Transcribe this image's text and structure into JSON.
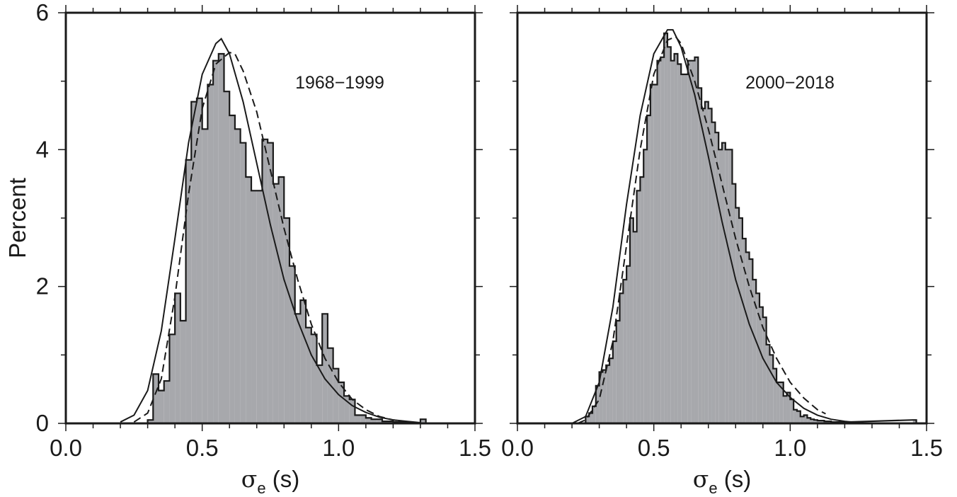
{
  "colors": {
    "hist_fill": "#a7a8ac",
    "line": "#1a1a1a",
    "frame": "#1a1a1a",
    "background": "#ffffff"
  },
  "chart_data": [
    {
      "type": "histogram",
      "title": "",
      "annotation": "1968−1999",
      "xlabel_symbol": "σ",
      "xlabel_sub": "e",
      "xlabel_unit": " (s)",
      "ylabel": "Percent",
      "xlim": [
        0.0,
        1.5
      ],
      "ylim": [
        0,
        6
      ],
      "xticks": [
        0.0,
        0.5,
        1.0,
        1.5
      ],
      "xtick_labels": [
        "0.0",
        "0.5",
        "1.0",
        "1.5"
      ],
      "yticks": [
        0,
        2,
        4,
        6
      ],
      "ytick_labels": [
        "0",
        "2",
        "4",
        "6"
      ],
      "grid": false,
      "hist": {
        "bin_width": 0.02,
        "bins_start": [
          0.3,
          0.32,
          0.34,
          0.36,
          0.38,
          0.4,
          0.42,
          0.44,
          0.46,
          0.48,
          0.5,
          0.52,
          0.54,
          0.56,
          0.58,
          0.6,
          0.62,
          0.64,
          0.66,
          0.68,
          0.7,
          0.72,
          0.74,
          0.76,
          0.78,
          0.8,
          0.82,
          0.84,
          0.86,
          0.88,
          0.9,
          0.92,
          0.94,
          0.96,
          0.98,
          1.0,
          1.02,
          1.04,
          1.06,
          1.08,
          1.1,
          1.12,
          1.14,
          1.16,
          1.18,
          1.2,
          1.22,
          1.24,
          1.26,
          1.28,
          1.3
        ],
        "percent": [
          0.05,
          0.72,
          0.48,
          0.62,
          1.3,
          1.9,
          1.5,
          3.85,
          4.7,
          4.75,
          4.3,
          4.95,
          5.3,
          5.4,
          4.85,
          4.5,
          4.3,
          4.1,
          3.6,
          3.4,
          3.4,
          4.15,
          4.1,
          3.5,
          3.6,
          3.0,
          2.3,
          1.6,
          1.8,
          1.4,
          1.3,
          0.85,
          1.6,
          1.1,
          0.8,
          0.6,
          0.4,
          0.35,
          0.12,
          0.12,
          0.08,
          0.06,
          0.06,
          0.03,
          0.03,
          0.02,
          0.02,
          0.01,
          0.0,
          0.0,
          0.06
        ]
      },
      "curves": [
        {
          "style": "solid",
          "x": [
            0.2,
            0.25,
            0.3,
            0.35,
            0.4,
            0.45,
            0.5,
            0.55,
            0.57,
            0.6,
            0.65,
            0.7,
            0.75,
            0.8,
            0.85,
            0.9,
            0.95,
            1.0,
            1.05,
            1.1,
            1.15,
            1.2,
            1.25,
            1.3
          ],
          "y": [
            0.02,
            0.12,
            0.48,
            1.35,
            2.7,
            4.1,
            5.1,
            5.55,
            5.62,
            5.4,
            4.7,
            3.8,
            2.9,
            2.1,
            1.5,
            1.0,
            0.65,
            0.42,
            0.26,
            0.16,
            0.09,
            0.05,
            0.03,
            0.01
          ]
        },
        {
          "style": "dashed",
          "x": [
            0.25,
            0.3,
            0.35,
            0.4,
            0.45,
            0.5,
            0.55,
            0.6,
            0.62,
            0.65,
            0.7,
            0.75,
            0.8,
            0.85,
            0.9,
            0.95,
            1.0,
            1.05,
            1.1,
            1.15,
            1.2,
            1.25
          ],
          "y": [
            0.02,
            0.15,
            0.65,
            1.85,
            3.35,
            4.6,
            5.25,
            5.42,
            5.4,
            5.15,
            4.55,
            3.7,
            2.85,
            2.1,
            1.45,
            0.95,
            0.6,
            0.35,
            0.2,
            0.1,
            0.05,
            0.02
          ]
        }
      ]
    },
    {
      "type": "histogram",
      "title": "",
      "annotation": "2000−2018",
      "xlabel_symbol": "σ",
      "xlabel_sub": "e",
      "xlabel_unit": " (s)",
      "ylabel": "",
      "xlim": [
        0.0,
        1.5
      ],
      "ylim": [
        0,
        6
      ],
      "xticks": [
        0.0,
        0.5,
        1.0,
        1.5
      ],
      "xtick_labels": [
        "0.0",
        "0.5",
        "1.0",
        "1.5"
      ],
      "yticks": [
        0,
        2,
        4,
        6
      ],
      "ytick_labels": [],
      "grid": false,
      "hist": {
        "bin_width": 0.0125,
        "bins_start": [
          0.25,
          0.2625,
          0.275,
          0.2875,
          0.3,
          0.3125,
          0.325,
          0.3375,
          0.35,
          0.3625,
          0.375,
          0.3875,
          0.4,
          0.4125,
          0.425,
          0.4375,
          0.45,
          0.4625,
          0.475,
          0.4875,
          0.5,
          0.5125,
          0.525,
          0.5375,
          0.55,
          0.5625,
          0.575,
          0.5875,
          0.6,
          0.6125,
          0.625,
          0.6375,
          0.65,
          0.6625,
          0.675,
          0.6875,
          0.7,
          0.7125,
          0.725,
          0.7375,
          0.75,
          0.7625,
          0.775,
          0.7875,
          0.8,
          0.8125,
          0.825,
          0.8375,
          0.85,
          0.8625,
          0.875,
          0.8875,
          0.9,
          0.9125,
          0.925,
          0.9375,
          0.95,
          0.9625,
          0.975,
          0.9875,
          1.0,
          1.0125,
          1.025,
          1.0375,
          1.05,
          1.0625,
          1.075,
          1.0875,
          1.1,
          1.1125,
          1.125,
          1.1375,
          1.15,
          1.1625,
          1.175,
          1.1875,
          1.2,
          1.45
        ],
        "percent": [
          0.1,
          0.15,
          0.25,
          0.55,
          0.75,
          0.78,
          0.85,
          0.95,
          1.2,
          1.5,
          1.9,
          2.1,
          2.3,
          3.0,
          2.8,
          3.4,
          3.6,
          4.0,
          4.5,
          4.95,
          4.95,
          5.3,
          5.35,
          5.7,
          5.5,
          5.3,
          5.4,
          5.25,
          5.1,
          5.1,
          5.3,
          5.3,
          5.35,
          4.9,
          4.6,
          4.7,
          4.6,
          4.4,
          4.25,
          4.0,
          4.1,
          4.0,
          4.0,
          3.5,
          3.15,
          3.0,
          2.7,
          2.5,
          2.4,
          2.1,
          1.9,
          1.7,
          1.55,
          1.15,
          1.0,
          0.8,
          0.6,
          0.6,
          0.4,
          0.45,
          0.35,
          0.2,
          0.18,
          0.1,
          0.12,
          0.08,
          0.06,
          0.05,
          0.04,
          0.04,
          0.03,
          0.03,
          0.02,
          0.02,
          0.02,
          0.02,
          0.02,
          0.05
        ]
      },
      "curves": [
        {
          "style": "solid",
          "x": [
            0.2,
            0.25,
            0.3,
            0.35,
            0.4,
            0.45,
            0.5,
            0.55,
            0.57,
            0.6,
            0.65,
            0.7,
            0.75,
            0.8,
            0.85,
            0.9,
            0.95,
            1.0,
            1.05,
            1.1,
            1.15,
            1.2,
            1.25,
            1.27
          ],
          "y": [
            0.0,
            0.1,
            0.6,
            1.7,
            3.2,
            4.5,
            5.4,
            5.75,
            5.75,
            5.5,
            4.8,
            3.9,
            2.95,
            2.1,
            1.45,
            0.95,
            0.6,
            0.38,
            0.22,
            0.12,
            0.06,
            0.03,
            0.01,
            0.0
          ]
        },
        {
          "style": "dashed",
          "x": [
            0.22,
            0.25,
            0.3,
            0.35,
            0.4,
            0.45,
            0.5,
            0.55,
            0.58,
            0.6,
            0.65,
            0.7,
            0.75,
            0.8,
            0.85,
            0.9,
            0.95,
            1.0,
            1.05,
            1.1,
            1.13
          ],
          "y": [
            0.0,
            0.05,
            0.35,
            1.2,
            2.6,
            4.0,
            5.1,
            5.6,
            5.65,
            5.55,
            5.0,
            4.3,
            3.5,
            2.7,
            2.0,
            1.4,
            0.95,
            0.6,
            0.37,
            0.2,
            0.14
          ]
        }
      ]
    }
  ]
}
